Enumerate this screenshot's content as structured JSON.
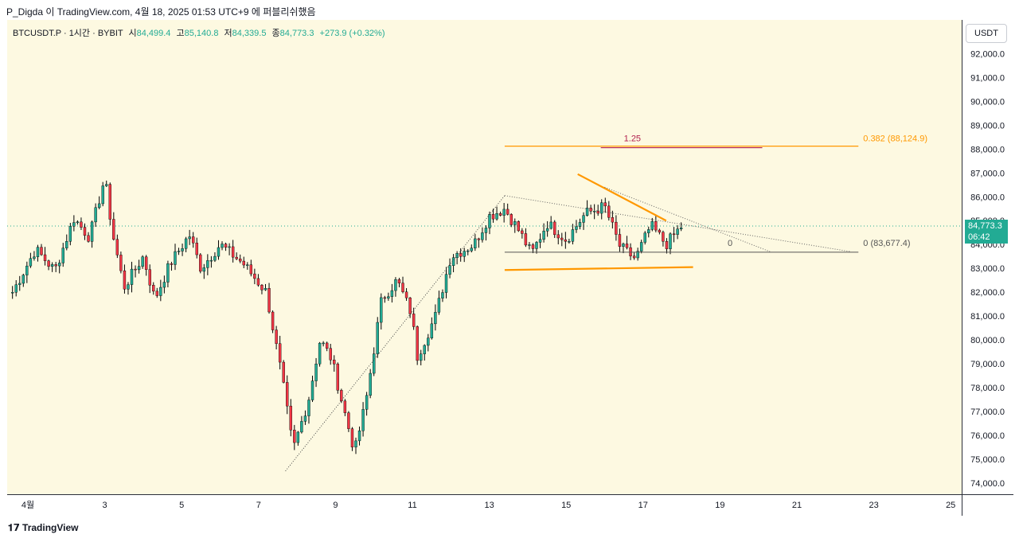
{
  "caption": "P_Digda 이 TradingView.com, 4월 18, 2025 01:53 UTC+9 에 퍼블리쉬했음",
  "legend": {
    "symbol": "BTCUSDT.P · 1시간 · BYBIT",
    "open_label": "시",
    "open": "84,499.4",
    "high_label": "고",
    "high": "85,140.8",
    "low_label": "저",
    "low": "84,339.5",
    "close_label": "종",
    "close": "84,773.3",
    "change": "+273.9 (+0.32%)"
  },
  "currency_button": "USDT",
  "logo_text": "TradingView",
  "colors": {
    "up": "#22ab94",
    "down": "#f23645",
    "orange": "#ff9800",
    "background": "#fdf9e1"
  },
  "chart_data": {
    "type": "candlestick",
    "title": "BTCUSDT.P 1H BYBIT",
    "ylim": [
      73500,
      93000
    ],
    "xlim_days": [
      0,
      25
    ],
    "y_ticks": [
      "92,000.0",
      "91,000.0",
      "90,000.0",
      "89,000.0",
      "88,000.0",
      "87,000.0",
      "86,000.0",
      "85,000.0",
      "84,000.0",
      "83,000.0",
      "82,000.0",
      "81,000.0",
      "80,000.0",
      "79,000.0",
      "78,000.0",
      "77,000.0",
      "76,000.0",
      "75,000.0",
      "74,000.0"
    ],
    "y_tick_values": [
      92000,
      91000,
      90000,
      89000,
      88000,
      87000,
      86000,
      85000,
      84000,
      83000,
      82000,
      81000,
      80000,
      79000,
      78000,
      77000,
      76000,
      75000,
      74000
    ],
    "x_ticks": [
      {
        "label": "4월",
        "day": 1
      },
      {
        "label": "3",
        "day": 3
      },
      {
        "label": "5",
        "day": 5
      },
      {
        "label": "7",
        "day": 7
      },
      {
        "label": "9",
        "day": 9
      },
      {
        "label": "11",
        "day": 11
      },
      {
        "label": "13",
        "day": 13
      },
      {
        "label": "15",
        "day": 15
      },
      {
        "label": "17",
        "day": 17
      },
      {
        "label": "19",
        "day": 19
      },
      {
        "label": "21",
        "day": 21
      },
      {
        "label": "23",
        "day": 23
      },
      {
        "label": "25",
        "day": 25
      }
    ],
    "path_points": [
      [
        0.6,
        82000
      ],
      [
        1.2,
        83800
      ],
      [
        1.7,
        82900
      ],
      [
        2.2,
        85100
      ],
      [
        2.6,
        84300
      ],
      [
        3.0,
        86800
      ],
      [
        3.2,
        84500
      ],
      [
        3.5,
        82200
      ],
      [
        4.0,
        83500
      ],
      [
        4.3,
        81700
      ],
      [
        4.7,
        83200
      ],
      [
        5.2,
        84400
      ],
      [
        5.5,
        83000
      ],
      [
        6.0,
        84000
      ],
      [
        6.6,
        83200
      ],
      [
        7.2,
        82000
      ],
      [
        7.6,
        78500
      ],
      [
        7.9,
        75400
      ],
      [
        8.3,
        77500
      ],
      [
        8.6,
        80000
      ],
      [
        8.9,
        79200
      ],
      [
        9.2,
        77200
      ],
      [
        9.5,
        75300
      ],
      [
        9.8,
        77500
      ],
      [
        10.2,
        81700
      ],
      [
        10.6,
        82500
      ],
      [
        11.0,
        81000
      ],
      [
        11.1,
        79200
      ],
      [
        11.6,
        81000
      ],
      [
        12.0,
        83500
      ],
      [
        12.6,
        84000
      ],
      [
        13.0,
        85200
      ],
      [
        13.4,
        85500
      ],
      [
        13.8,
        84500
      ],
      [
        14.1,
        83600
      ],
      [
        14.5,
        84900
      ],
      [
        15.0,
        84200
      ],
      [
        15.5,
        85300
      ],
      [
        16.0,
        85600
      ],
      [
        16.4,
        83900
      ],
      [
        16.8,
        83400
      ],
      [
        17.2,
        84800
      ],
      [
        17.6,
        84000
      ],
      [
        18.0,
        84773
      ]
    ],
    "current_price": "84,773.3",
    "countdown": "06:42",
    "current_price_value": 84773.3,
    "annotations": {
      "fib_1_25_label": "1.25",
      "fib_0382_label": "0.382 (88,124.9)",
      "fib_0382_value": 88124.9,
      "fib_0_label": "0",
      "fib_0_value_label": "0 (83,677.4)",
      "fib_0_value": 83677.4
    },
    "drawing_lines": [
      {
        "kind": "fib-0382",
        "from": [
          13.4,
          88124.9
        ],
        "to": [
          22.6,
          88124.9
        ]
      },
      {
        "kind": "fib-1-25",
        "from": [
          15.9,
          88060
        ],
        "to": [
          20.1,
          88060
        ]
      },
      {
        "kind": "fib-0",
        "from": [
          13.4,
          83677.4
        ],
        "to": [
          22.6,
          83677.4
        ]
      },
      {
        "kind": "wedge-top",
        "from": [
          15.3,
          86950
        ],
        "to": [
          17.6,
          85000
        ]
      },
      {
        "kind": "wedge-bottom",
        "from": [
          13.4,
          82930
        ],
        "to": [
          18.3,
          83050
        ]
      },
      {
        "kind": "dotted-upper",
        "from": [
          13.4,
          86050
        ],
        "to": [
          22.4,
          83700
        ]
      },
      {
        "kind": "dotted-lower",
        "from": [
          16.0,
          86400
        ],
        "to": [
          20.3,
          83700
        ]
      },
      {
        "kind": "dotted-rise",
        "from": [
          7.7,
          74500
        ],
        "to": [
          13.4,
          86050
        ]
      }
    ]
  }
}
